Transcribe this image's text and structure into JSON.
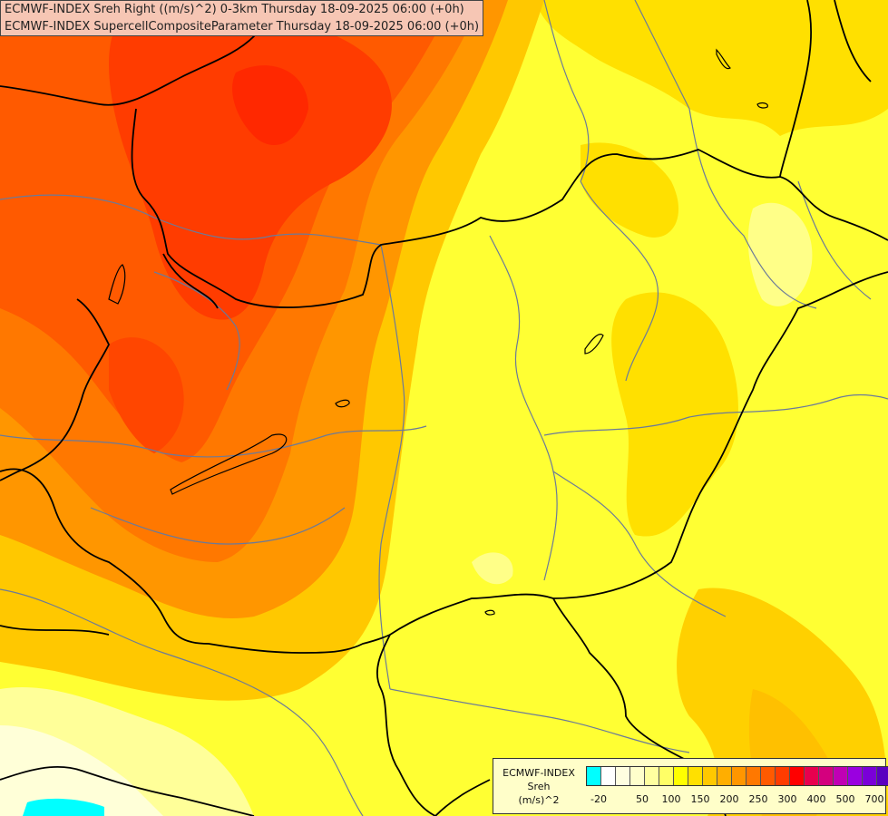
{
  "titles": [
    "ECMWF-INDEX Sreh Right ((m/s)^2) 0-3km Thursday 18-09-2025 06:00 (+0h)",
    "ECMWF-INDEX SupercellCompositeParameter Thursday 18-09-2025 06:00 (+0h)"
  ],
  "legend": {
    "line1": "ECMWF-INDEX",
    "line2": "Sreh",
    "line3": "(m/s)^2",
    "colors": [
      "#00ffff",
      "#ffffff",
      "#fffee0",
      "#ffffcc",
      "#ffffa0",
      "#ffff66",
      "#ffff00",
      "#ffe000",
      "#ffc800",
      "#ffae00",
      "#ff9600",
      "#ff7800",
      "#ff5a00",
      "#ff3c00",
      "#ff0000",
      "#e8004e",
      "#d4007e",
      "#c000b4",
      "#9a00e0",
      "#7a00d8",
      "#5a00c0",
      "#3a00a8",
      "#1a0080"
    ],
    "tick_labels": [
      "-20",
      "50",
      "100",
      "150",
      "200",
      "250",
      "300",
      "400",
      "500",
      "700"
    ]
  }
}
